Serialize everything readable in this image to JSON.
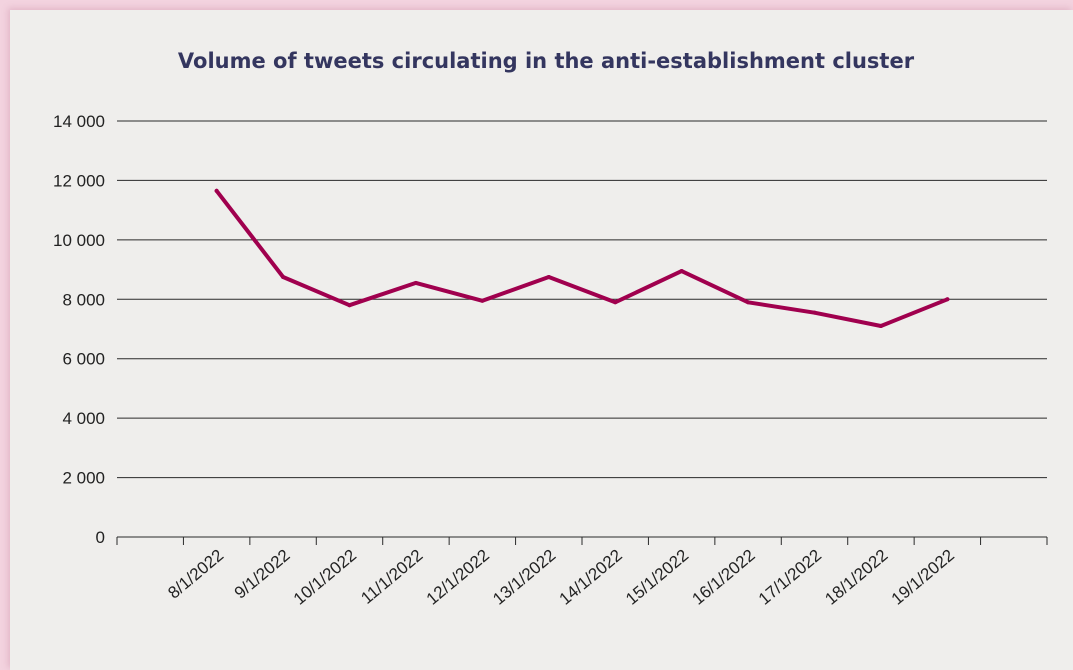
{
  "chart_data": {
    "type": "line",
    "title": "Volume of tweets circulating in the anti-establishment cluster",
    "xlabel": "",
    "ylabel": "",
    "ylim": [
      0,
      14000
    ],
    "y_ticks": [
      0,
      2000,
      4000,
      6000,
      8000,
      10000,
      12000,
      14000
    ],
    "y_tick_labels": [
      "0",
      "2 000",
      "4 000",
      "6 000",
      "8 000",
      "10 000",
      "12 000",
      "14 000"
    ],
    "categories": [
      "8/1/2022",
      "9/1/2022",
      "10/1/2022",
      "11/1/2022",
      "12/1/2022",
      "13/1/2022",
      "14/1/2022",
      "15/1/2022",
      "16/1/2022",
      "17/1/2022",
      "18/1/2022",
      "19/1/2022"
    ],
    "series": [
      {
        "values": [
          11650,
          8750,
          7800,
          8550,
          7950,
          8750,
          7900,
          8950,
          7900,
          7550,
          7100,
          8000
        ],
        "color": "#a0004e"
      }
    ],
    "grid": true,
    "legend": "none"
  }
}
